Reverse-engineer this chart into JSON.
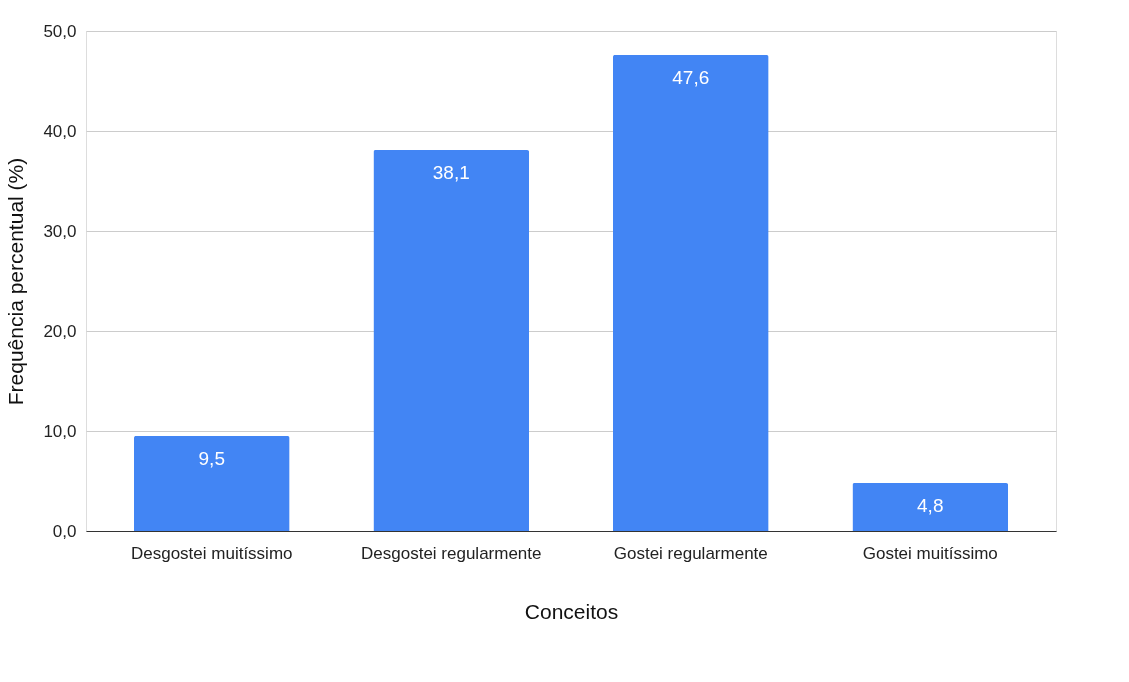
{
  "chart_data": {
    "type": "bar",
    "xlabel": "Conceitos",
    "ylabel": "Frequência percentual (%)",
    "categories": [
      "Desgostei muitíssimo",
      "Desgostei regularmente",
      "Gostei regularmente",
      "Gostei muitíssimo"
    ],
    "values": [
      9.5,
      38.1,
      47.6,
      4.8
    ],
    "value_labels": [
      "9,5",
      "38,1",
      "47,6",
      "4,8"
    ],
    "color": "#4285f4",
    "ylim": [
      0,
      50
    ],
    "yticks": [
      {
        "value": 0,
        "label": "0,0"
      },
      {
        "value": 10,
        "label": "10,0"
      },
      {
        "value": 20,
        "label": "20,0"
      },
      {
        "value": 30,
        "label": "30,0"
      },
      {
        "value": 40,
        "label": "40,0"
      },
      {
        "value": 50,
        "label": "50,0"
      }
    ],
    "grid": "y"
  }
}
